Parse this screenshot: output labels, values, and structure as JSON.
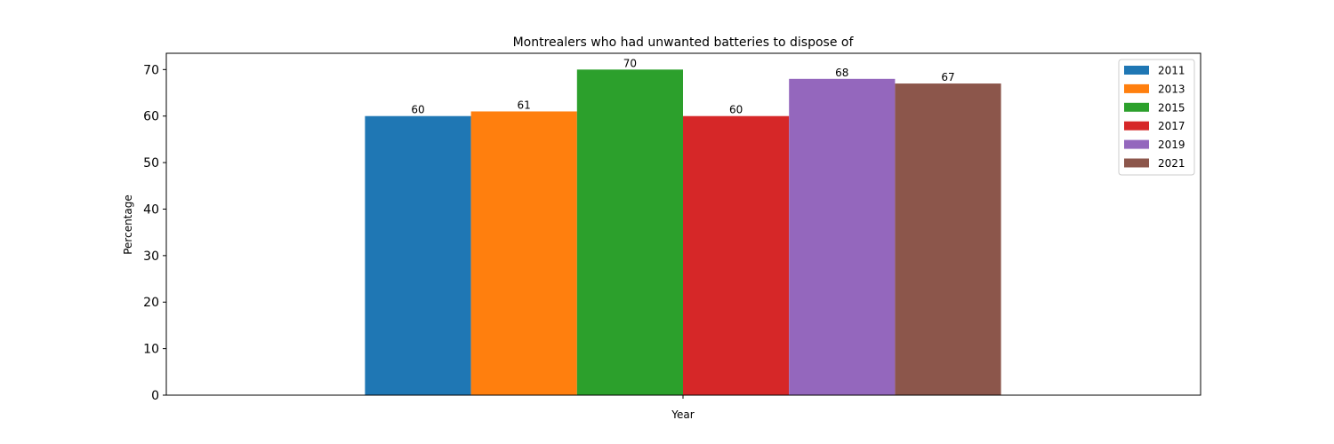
{
  "chart_data": {
    "type": "bar",
    "title": "Montrealers who had unwanted batteries to dispose of",
    "xlabel": "Year",
    "ylabel": "Percentage",
    "ylim": [
      0,
      73.5
    ],
    "yticks": [
      0,
      10,
      20,
      30,
      40,
      50,
      60,
      70
    ],
    "categories": [
      ""
    ],
    "grid": false,
    "legend_position": "top-right",
    "series": [
      {
        "name": "2011",
        "values": [
          60
        ],
        "color": "#1f77b4"
      },
      {
        "name": "2013",
        "values": [
          61
        ],
        "color": "#ff7f0e"
      },
      {
        "name": "2015",
        "values": [
          70
        ],
        "color": "#2ca02c"
      },
      {
        "name": "2017",
        "values": [
          60
        ],
        "color": "#d62728"
      },
      {
        "name": "2019",
        "values": [
          68
        ],
        "color": "#9467bd"
      },
      {
        "name": "2021",
        "values": [
          67
        ],
        "color": "#8c564b"
      }
    ]
  }
}
